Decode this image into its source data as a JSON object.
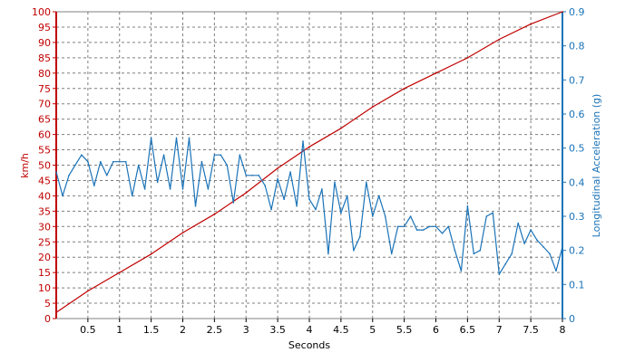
{
  "chart_data": {
    "type": "line",
    "xlabel": "Seconds",
    "ylabel_left": "km/h",
    "ylabel_right": "Longitudinal Acceleration (g)",
    "xlim": [
      0,
      8
    ],
    "ylim_left": [
      0,
      100
    ],
    "ylim_right": [
      0,
      0.9
    ],
    "x_ticks": [
      "0.5",
      "1",
      "1.5",
      "2",
      "2.5",
      "3",
      "3.5",
      "4",
      "4.5",
      "5",
      "5.5",
      "6",
      "6.5",
      "7",
      "7.5",
      "8"
    ],
    "y_left_ticks": [
      "0",
      "5",
      "10",
      "15",
      "20",
      "25",
      "30",
      "35",
      "40",
      "45",
      "50",
      "55",
      "60",
      "65",
      "70",
      "75",
      "80",
      "85",
      "90",
      "95",
      "100"
    ],
    "y_right_ticks": [
      "0",
      "0.1",
      "0.2",
      "0.3",
      "0.4",
      "0.5",
      "0.6",
      "0.7",
      "0.8",
      "0.9"
    ],
    "grid": true,
    "colors": {
      "speed": "#c00000",
      "accel": "#1a73b8",
      "grid": "#7f7f7f"
    },
    "series": [
      {
        "axis": "left",
        "x": [
          0,
          0.5,
          1,
          1.5,
          2,
          2.5,
          3,
          3.5,
          4,
          4.5,
          5,
          5.5,
          6,
          6.5,
          7,
          7.5,
          8
        ],
        "values": [
          2,
          9,
          15,
          21,
          28,
          34,
          41,
          49,
          56,
          62,
          69,
          75,
          80,
          85,
          91,
          96,
          100
        ]
      },
      {
        "axis": "right",
        "x": [
          0.0,
          0.1,
          0.2,
          0.3,
          0.4,
          0.5,
          0.6,
          0.7,
          0.8,
          0.9,
          1.0,
          1.1,
          1.2,
          1.3,
          1.4,
          1.5,
          1.6,
          1.7,
          1.8,
          1.9,
          2.0,
          2.1,
          2.2,
          2.3,
          2.4,
          2.5,
          2.6,
          2.7,
          2.8,
          2.9,
          3.0,
          3.1,
          3.2,
          3.3,
          3.4,
          3.5,
          3.6,
          3.7,
          3.8,
          3.9,
          4.0,
          4.1,
          4.2,
          4.3,
          4.4,
          4.5,
          4.6,
          4.7,
          4.8,
          4.9,
          5.0,
          5.1,
          5.2,
          5.3,
          5.4,
          5.5,
          5.6,
          5.7,
          5.8,
          5.9,
          6.0,
          6.1,
          6.2,
          6.3,
          6.4,
          6.5,
          6.6,
          6.7,
          6.8,
          6.9,
          7.0,
          7.1,
          7.2,
          7.3,
          7.4,
          7.5,
          7.6,
          7.7,
          7.8,
          7.9,
          8.0
        ],
        "values": [
          0.43,
          0.36,
          0.42,
          0.45,
          0.48,
          0.46,
          0.39,
          0.46,
          0.42,
          0.46,
          0.46,
          0.46,
          0.36,
          0.45,
          0.38,
          0.53,
          0.4,
          0.48,
          0.38,
          0.53,
          0.38,
          0.53,
          0.33,
          0.46,
          0.38,
          0.48,
          0.48,
          0.45,
          0.34,
          0.48,
          0.42,
          0.42,
          0.42,
          0.39,
          0.32,
          0.41,
          0.35,
          0.43,
          0.33,
          0.52,
          0.35,
          0.32,
          0.38,
          0.19,
          0.4,
          0.31,
          0.36,
          0.2,
          0.24,
          0.4,
          0.3,
          0.36,
          0.3,
          0.19,
          0.27,
          0.27,
          0.3,
          0.26,
          0.26,
          0.27,
          0.27,
          0.25,
          0.27,
          0.2,
          0.14,
          0.33,
          0.19,
          0.2,
          0.3,
          0.31,
          0.13,
          0.16,
          0.19,
          0.28,
          0.22,
          0.26,
          0.23,
          0.21,
          0.19,
          0.14,
          0.21
        ]
      }
    ]
  }
}
